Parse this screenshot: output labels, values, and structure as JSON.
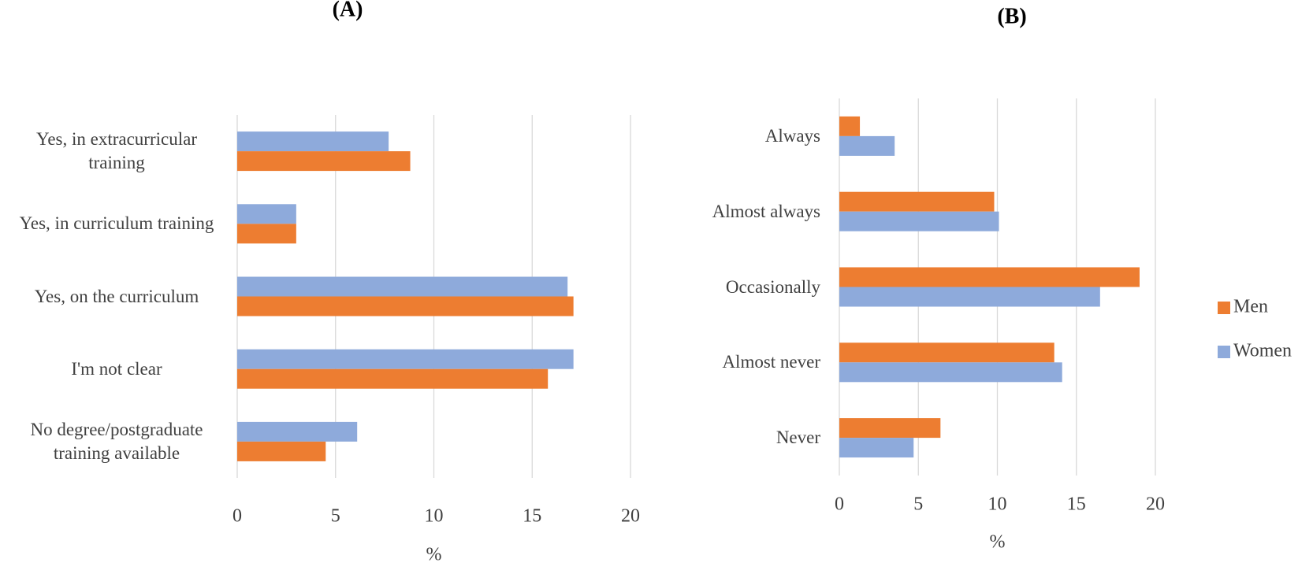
{
  "chart_data": [
    {
      "type": "bar",
      "orientation": "horizontal",
      "title": "(A)",
      "xlabel": "%",
      "categories": [
        "Yes, in extracurricular training",
        "Yes, in curriculum training",
        "Yes, on the curriculum",
        "I'm not clear",
        "No degree/postgraduate training available"
      ],
      "series": [
        {
          "name": "Women",
          "color": "#8eaadb",
          "values": [
            7.7,
            3,
            16.8,
            17.1,
            6.1
          ]
        },
        {
          "name": "Men",
          "color": "#ed7d31",
          "values": [
            8.8,
            3,
            17.1,
            15.8,
            4.5
          ]
        }
      ],
      "xlim": [
        0,
        20
      ],
      "xticks": [
        0,
        5,
        10,
        15,
        20
      ],
      "grid": true
    },
    {
      "type": "bar",
      "orientation": "horizontal",
      "title": "(B)",
      "xlabel": "%",
      "categories": [
        "Always",
        "Almost always",
        "Occasionally",
        "Almost never",
        "Never"
      ],
      "series": [
        {
          "name": "Men",
          "color": "#ed7d31",
          "values": [
            1.3,
            9.8,
            19,
            13.6,
            6.4
          ]
        },
        {
          "name": "Women",
          "color": "#8eaadb",
          "values": [
            3.5,
            10.1,
            16.5,
            14.1,
            4.7
          ]
        }
      ],
      "xlim": [
        0,
        20
      ],
      "xticks": [
        0,
        5,
        10,
        15,
        20
      ],
      "grid": true,
      "legend": "right"
    }
  ]
}
